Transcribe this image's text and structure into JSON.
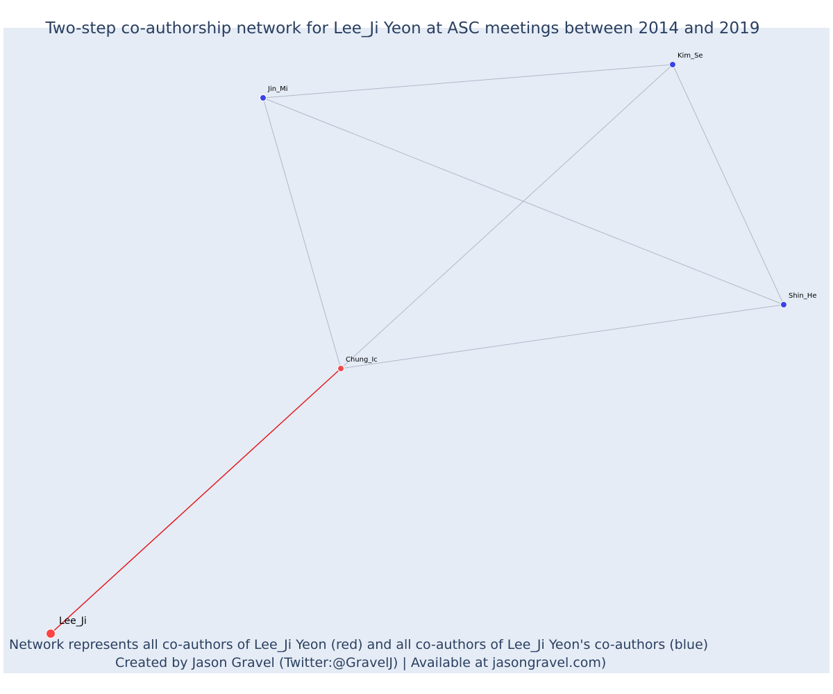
{
  "title": "Two-step co-authorship network for Lee_Ji Yeon at ASC meetings between 2014 and 2019",
  "footer_line1": "Network represents all co-authors of Lee_Ji Yeon (red) and all co-authors of Lee_Ji Yeon's co-authors (blue)",
  "footer_line2": "Created by Jason Gravel (Twitter:@GravelJ) | Available at jasongravel.com)",
  "colors": {
    "plot_background": "#e5ecf6",
    "focal_node": "#ff4444",
    "first_step": "#ef4a4a",
    "second_step": "#3a43e8",
    "first_step_edge": "#e31a1c",
    "other_edge": "#b3b6c8"
  },
  "nodes": [
    {
      "id": "Lee_Ji",
      "label": "Lee_Ji",
      "group": "focal"
    },
    {
      "id": "Chung_Ic",
      "label": "Chung_Ic",
      "group": "co-author"
    },
    {
      "id": "Jin_Mi",
      "label": "Jin_Mi",
      "group": "co-author-of-co-author"
    },
    {
      "id": "Kim_Se",
      "label": "Kim_Se",
      "group": "co-author-of-co-author"
    },
    {
      "id": "Shin_He",
      "label": "Shin_He",
      "group": "co-author-of-co-author"
    }
  ],
  "edges": [
    {
      "source": "Lee_Ji",
      "target": "Chung_Ic",
      "type": "first-step"
    },
    {
      "source": "Chung_Ic",
      "target": "Jin_Mi",
      "type": "second-step"
    },
    {
      "source": "Chung_Ic",
      "target": "Kim_Se",
      "type": "second-step"
    },
    {
      "source": "Chung_Ic",
      "target": "Shin_He",
      "type": "second-step"
    },
    {
      "source": "Jin_Mi",
      "target": "Kim_Se",
      "type": "second-step"
    },
    {
      "source": "Jin_Mi",
      "target": "Shin_He",
      "type": "second-step"
    },
    {
      "source": "Kim_Se",
      "target": "Shin_He",
      "type": "second-step"
    }
  ]
}
